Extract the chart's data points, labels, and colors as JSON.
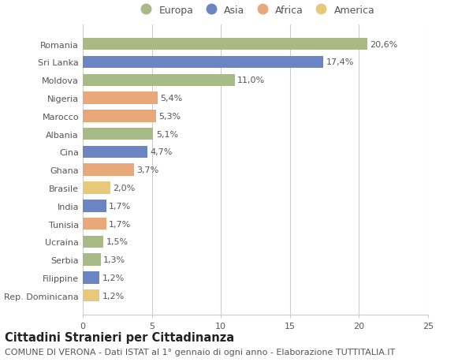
{
  "categories": [
    "Rep. Dominicana",
    "Filippine",
    "Serbia",
    "Ucraina",
    "Tunisia",
    "India",
    "Brasile",
    "Ghana",
    "Cina",
    "Albania",
    "Marocco",
    "Nigeria",
    "Moldova",
    "Sri Lanka",
    "Romania"
  ],
  "values": [
    1.2,
    1.2,
    1.3,
    1.5,
    1.7,
    1.7,
    2.0,
    3.7,
    4.7,
    5.1,
    5.3,
    5.4,
    11.0,
    17.4,
    20.6
  ],
  "labels": [
    "1,2%",
    "1,2%",
    "1,3%",
    "1,5%",
    "1,7%",
    "1,7%",
    "2,0%",
    "3,7%",
    "4,7%",
    "5,1%",
    "5,3%",
    "5,4%",
    "11,0%",
    "17,4%",
    "20,6%"
  ],
  "colors": [
    "#e8c97a",
    "#6b85c4",
    "#a8bb87",
    "#a8bb87",
    "#e8a87a",
    "#6b85c4",
    "#e8c97a",
    "#e8a87a",
    "#6b85c4",
    "#a8bb87",
    "#e8a87a",
    "#e8a87a",
    "#a8bb87",
    "#6b85c4",
    "#a8bb87"
  ],
  "legend_names": [
    "Europa",
    "Asia",
    "Africa",
    "America"
  ],
  "legend_colors": [
    "#a8bb87",
    "#6b85c4",
    "#e8a87a",
    "#e8c97a"
  ],
  "xlim": [
    0,
    25
  ],
  "xticks": [
    0,
    5,
    10,
    15,
    20,
    25
  ],
  "title": "Cittadini Stranieri per Cittadinanza",
  "subtitle": "COMUNE DI VERONA - Dati ISTAT al 1° gennaio di ogni anno - Elaborazione TUTTITALIA.IT",
  "bg_color": "#ffffff",
  "bar_height": 0.68,
  "grid_color": "#cccccc",
  "text_color": "#555555",
  "title_fontsize": 10.5,
  "subtitle_fontsize": 8.0,
  "label_fontsize": 8.0,
  "tick_fontsize": 8.0,
  "legend_fontsize": 9.0
}
